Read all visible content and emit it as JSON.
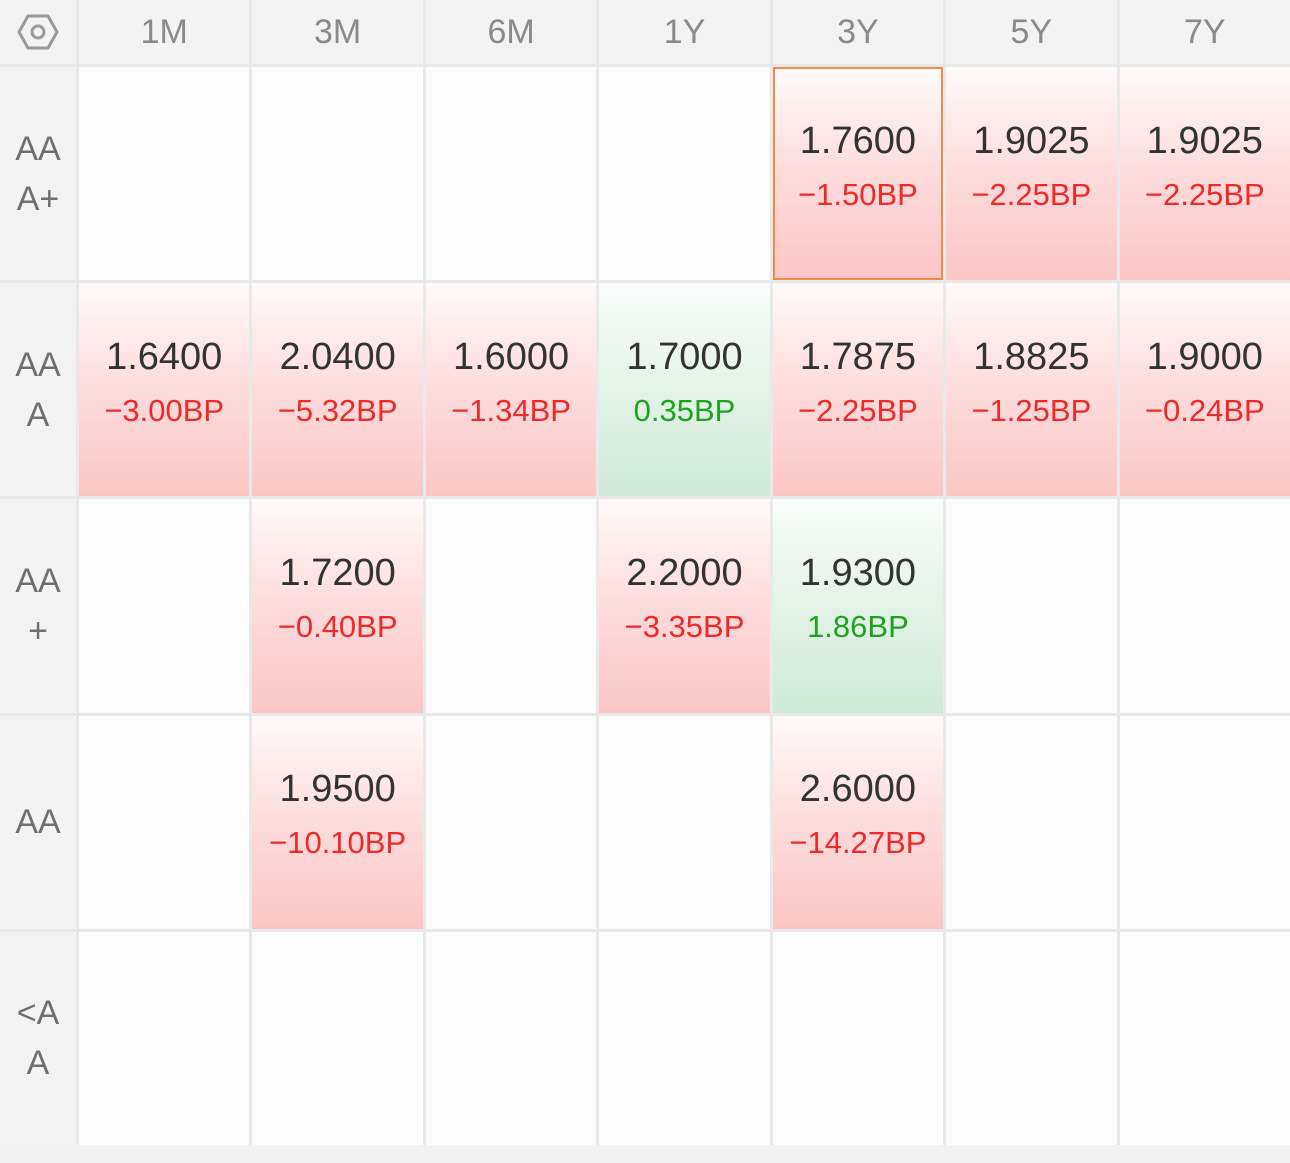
{
  "columns": [
    "1M",
    "3M",
    "6M",
    "1Y",
    "3Y",
    "5Y",
    "7Y"
  ],
  "corner_icon": "settings-hexagon-icon",
  "rows": [
    {
      "label": "AAA+",
      "cells": [
        {
          "value": "",
          "change": "",
          "trend": "none"
        },
        {
          "value": "",
          "change": "",
          "trend": "none"
        },
        {
          "value": "",
          "change": "",
          "trend": "none"
        },
        {
          "value": "",
          "change": "",
          "trend": "none"
        },
        {
          "value": "1.7600",
          "change": "−1.50BP",
          "trend": "down",
          "selected": true
        },
        {
          "value": "1.9025",
          "change": "−2.25BP",
          "trend": "down"
        },
        {
          "value": "1.9025",
          "change": "−2.25BP",
          "trend": "down"
        }
      ]
    },
    {
      "label": "AAA",
      "cells": [
        {
          "value": "1.6400",
          "change": "−3.00BP",
          "trend": "down"
        },
        {
          "value": "2.0400",
          "change": "−5.32BP",
          "trend": "down"
        },
        {
          "value": "1.6000",
          "change": "−1.34BP",
          "trend": "down"
        },
        {
          "value": "1.7000",
          "change": "0.35BP",
          "trend": "up"
        },
        {
          "value": "1.7875",
          "change": "−2.25BP",
          "trend": "down"
        },
        {
          "value": "1.8825",
          "change": "−1.25BP",
          "trend": "down"
        },
        {
          "value": "1.9000",
          "change": "−0.24BP",
          "trend": "down"
        }
      ]
    },
    {
      "label": "AA+",
      "cells": [
        {
          "value": "",
          "change": "",
          "trend": "none"
        },
        {
          "value": "1.7200",
          "change": "−0.40BP",
          "trend": "down"
        },
        {
          "value": "",
          "change": "",
          "trend": "none"
        },
        {
          "value": "2.2000",
          "change": "−3.35BP",
          "trend": "down"
        },
        {
          "value": "1.9300",
          "change": "1.86BP",
          "trend": "up"
        },
        {
          "value": "",
          "change": "",
          "trend": "none"
        },
        {
          "value": "",
          "change": "",
          "trend": "none"
        }
      ]
    },
    {
      "label": "AA",
      "cells": [
        {
          "value": "",
          "change": "",
          "trend": "none"
        },
        {
          "value": "1.9500",
          "change": "−10.10BP",
          "trend": "down"
        },
        {
          "value": "",
          "change": "",
          "trend": "none"
        },
        {
          "value": "",
          "change": "",
          "trend": "none"
        },
        {
          "value": "2.6000",
          "change": "−14.27BP",
          "trend": "down"
        },
        {
          "value": "",
          "change": "",
          "trend": "none"
        },
        {
          "value": "",
          "change": "",
          "trend": "none"
        }
      ]
    },
    {
      "label": "<AA",
      "cells": [
        {
          "value": "",
          "change": "",
          "trend": "none"
        },
        {
          "value": "",
          "change": "",
          "trend": "none"
        },
        {
          "value": "",
          "change": "",
          "trend": "none"
        },
        {
          "value": "",
          "change": "",
          "trend": "none"
        },
        {
          "value": "",
          "change": "",
          "trend": "none"
        },
        {
          "value": "",
          "change": "",
          "trend": "none"
        },
        {
          "value": "",
          "change": "",
          "trend": "none"
        }
      ]
    }
  ],
  "colors": {
    "down_text": "#ec2a2a",
    "up_text": "#1fa31f",
    "down_fill": "#fcc6c6",
    "up_fill": "#cfe9d7",
    "selected_border": "#f08a4b"
  }
}
